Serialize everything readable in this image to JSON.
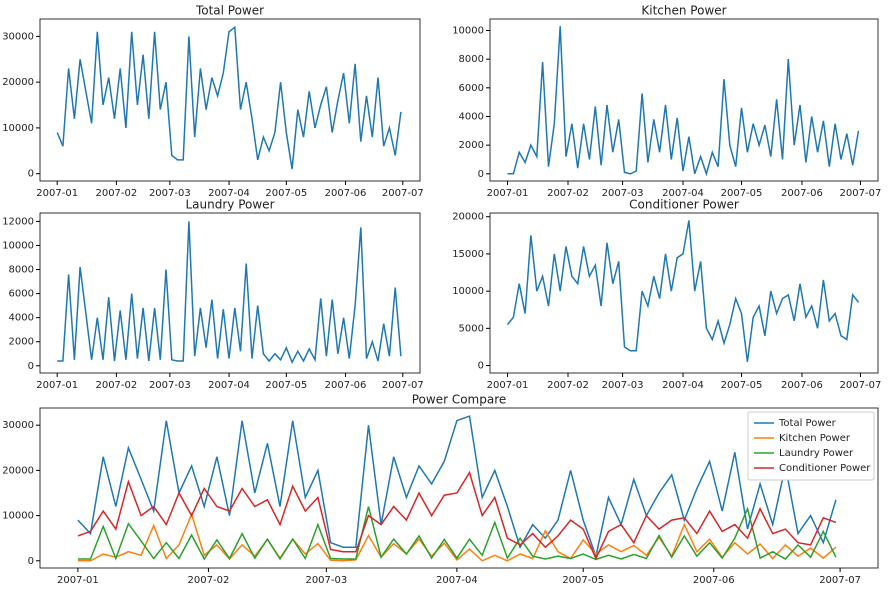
{
  "chart_data": [
    {
      "type": "line",
      "title": "Total Power",
      "color": "#1f77b4",
      "x": [
        0,
        3,
        6,
        9,
        12,
        15,
        18,
        21,
        24,
        27,
        30,
        33,
        36,
        39,
        42,
        45,
        48,
        51,
        54,
        57,
        60,
        63,
        66,
        69,
        72,
        75,
        78,
        81,
        84,
        87,
        90,
        93,
        96,
        99,
        102,
        105,
        108,
        111,
        114,
        117,
        120,
        123,
        126,
        129,
        132,
        135,
        138,
        141,
        144,
        147,
        150,
        153,
        156,
        159,
        162,
        165,
        168,
        171,
        174,
        177,
        180
      ],
      "values": [
        9000,
        6000,
        23000,
        12000,
        25000,
        18000,
        11000,
        31000,
        15000,
        21000,
        12000,
        23000,
        10000,
        31000,
        15000,
        26000,
        12000,
        31000,
        14000,
        20000,
        4000,
        3000,
        3000,
        30000,
        8000,
        23000,
        14000,
        21000,
        17000,
        22000,
        31000,
        32000,
        14000,
        20000,
        12000,
        3000,
        8000,
        5000,
        9000,
        20000,
        9000,
        1000,
        14000,
        8000,
        18000,
        10000,
        15000,
        19000,
        9000,
        16000,
        22000,
        11000,
        24000,
        7000,
        17000,
        8000,
        21000,
        6000,
        10000,
        4000,
        13500
      ],
      "xlim": [
        -9,
        190
      ],
      "xticks": [
        {
          "value": 0,
          "label": "2007-01"
        },
        {
          "value": 31,
          "label": "2007-02"
        },
        {
          "value": 59,
          "label": "2007-03"
        },
        {
          "value": 90,
          "label": "2007-04"
        },
        {
          "value": 120,
          "label": "2007-05"
        },
        {
          "value": 151,
          "label": "2007-06"
        },
        {
          "value": 181,
          "label": "2007-07"
        }
      ],
      "ylim": [
        -1600,
        33800
      ],
      "yticks": [
        0,
        10000,
        20000,
        30000
      ]
    },
    {
      "type": "line",
      "title": "Kitchen Power",
      "color": "#1f77b4",
      "x": [
        0,
        3,
        6,
        9,
        12,
        15,
        18,
        21,
        24,
        27,
        30,
        33,
        36,
        39,
        42,
        45,
        48,
        51,
        54,
        57,
        60,
        63,
        66,
        69,
        72,
        75,
        78,
        81,
        84,
        87,
        90,
        93,
        96,
        99,
        102,
        105,
        108,
        111,
        114,
        117,
        120,
        123,
        126,
        129,
        132,
        135,
        138,
        141,
        144,
        147,
        150,
        153,
        156,
        159,
        162,
        165,
        168,
        171,
        174,
        177,
        180
      ],
      "values": [
        0,
        0,
        1500,
        800,
        2000,
        1200,
        7800,
        500,
        3500,
        10300,
        1200,
        3500,
        400,
        3500,
        1000,
        4700,
        600,
        4800,
        1500,
        3800,
        100,
        0,
        200,
        5600,
        800,
        3800,
        1500,
        4800,
        1000,
        3900,
        200,
        2600,
        0,
        1200,
        0,
        1500,
        500,
        6600,
        2000,
        500,
        4600,
        1500,
        3500,
        2000,
        3400,
        1200,
        5200,
        1000,
        8000,
        2000,
        4800,
        800,
        4000,
        1500,
        3700,
        500,
        3500,
        1000,
        2800,
        600,
        3000
      ],
      "xlim": [
        -9,
        190
      ],
      "xticks": [
        {
          "value": 0,
          "label": "2007-01"
        },
        {
          "value": 31,
          "label": "2007-02"
        },
        {
          "value": 59,
          "label": "2007-03"
        },
        {
          "value": 90,
          "label": "2007-04"
        },
        {
          "value": 120,
          "label": "2007-05"
        },
        {
          "value": 151,
          "label": "2007-06"
        },
        {
          "value": 181,
          "label": "2007-07"
        }
      ],
      "ylim": [
        -500,
        10800
      ],
      "yticks": [
        0,
        2000,
        4000,
        6000,
        8000,
        10000
      ]
    },
    {
      "type": "line",
      "title": "Laundry Power",
      "color": "#1f77b4",
      "x": [
        0,
        3,
        6,
        9,
        12,
        15,
        18,
        21,
        24,
        27,
        30,
        33,
        36,
        39,
        42,
        45,
        48,
        51,
        54,
        57,
        60,
        63,
        66,
        69,
        72,
        75,
        78,
        81,
        84,
        87,
        90,
        93,
        96,
        99,
        102,
        105,
        108,
        111,
        114,
        117,
        120,
        123,
        126,
        129,
        132,
        135,
        138,
        141,
        144,
        147,
        150,
        153,
        156,
        159,
        162,
        165,
        168,
        171,
        174,
        177,
        180
      ],
      "values": [
        400,
        400,
        7600,
        500,
        8200,
        4400,
        500,
        4000,
        500,
        5700,
        400,
        4600,
        500,
        6000,
        600,
        4800,
        400,
        4800,
        500,
        8000,
        500,
        400,
        400,
        12000,
        800,
        4800,
        1500,
        5500,
        600,
        4700,
        600,
        4800,
        1200,
        8500,
        600,
        5000,
        1000,
        400,
        1000,
        500,
        1500,
        300,
        1200,
        400,
        1400,
        500,
        5600,
        800,
        5500,
        1000,
        4000,
        600,
        5000,
        11500,
        600,
        2000,
        400,
        3500,
        800,
        6500,
        800
      ],
      "xlim": [
        -9,
        190
      ],
      "xticks": [
        {
          "value": 0,
          "label": "2007-01"
        },
        {
          "value": 31,
          "label": "2007-02"
        },
        {
          "value": 59,
          "label": "2007-03"
        },
        {
          "value": 90,
          "label": "2007-04"
        },
        {
          "value": 120,
          "label": "2007-05"
        },
        {
          "value": 151,
          "label": "2007-06"
        },
        {
          "value": 181,
          "label": "2007-07"
        }
      ],
      "ylim": [
        -600,
        12700
      ],
      "yticks": [
        0,
        2000,
        4000,
        6000,
        8000,
        10000,
        12000
      ]
    },
    {
      "type": "line",
      "title": "Conditioner Power",
      "color": "#1f77b4",
      "x": [
        0,
        3,
        6,
        9,
        12,
        15,
        18,
        21,
        24,
        27,
        30,
        33,
        36,
        39,
        42,
        45,
        48,
        51,
        54,
        57,
        60,
        63,
        66,
        69,
        72,
        75,
        78,
        81,
        84,
        87,
        90,
        93,
        96,
        99,
        102,
        105,
        108,
        111,
        114,
        117,
        120,
        123,
        126,
        129,
        132,
        135,
        138,
        141,
        144,
        147,
        150,
        153,
        156,
        159,
        162,
        165,
        168,
        171,
        174,
        177,
        180
      ],
      "values": [
        5500,
        6500,
        11000,
        7000,
        17500,
        10000,
        12000,
        8000,
        15000,
        10000,
        16000,
        12000,
        11000,
        16000,
        12000,
        13500,
        8000,
        16500,
        11000,
        14000,
        2500,
        2000,
        2000,
        10000,
        8000,
        12000,
        9000,
        15000,
        10000,
        14500,
        15000,
        19500,
        10000,
        14000,
        5000,
        3500,
        6000,
        3000,
        5500,
        9000,
        7000,
        500,
        6500,
        8000,
        4000,
        10000,
        7000,
        9000,
        9500,
        6000,
        11000,
        6500,
        8000,
        5000,
        11500,
        6000,
        7000,
        4000,
        3500,
        9500,
        8500
      ],
      "xlim": [
        -9,
        190
      ],
      "xticks": [
        {
          "value": 0,
          "label": "2007-01"
        },
        {
          "value": 31,
          "label": "2007-02"
        },
        {
          "value": 59,
          "label": "2007-03"
        },
        {
          "value": 90,
          "label": "2007-04"
        },
        {
          "value": 120,
          "label": "2007-05"
        },
        {
          "value": 151,
          "label": "2007-06"
        },
        {
          "value": 181,
          "label": "2007-07"
        }
      ],
      "ylim": [
        -1000,
        20500
      ],
      "yticks": [
        0,
        5000,
        10000,
        15000,
        20000
      ]
    },
    {
      "type": "line",
      "title": "Power Compare",
      "legend": "upper right",
      "x": [
        0,
        3,
        6,
        9,
        12,
        15,
        18,
        21,
        24,
        27,
        30,
        33,
        36,
        39,
        42,
        45,
        48,
        51,
        54,
        57,
        60,
        63,
        66,
        69,
        72,
        75,
        78,
        81,
        84,
        87,
        90,
        93,
        96,
        99,
        102,
        105,
        108,
        111,
        114,
        117,
        120,
        123,
        126,
        129,
        132,
        135,
        138,
        141,
        144,
        147,
        150,
        153,
        156,
        159,
        162,
        165,
        168,
        171,
        174,
        177,
        180
      ],
      "series": [
        {
          "name": "Total Power",
          "color": "#1f77b4",
          "values": [
            9000,
            6000,
            23000,
            12000,
            25000,
            18000,
            11000,
            31000,
            15000,
            21000,
            12000,
            23000,
            10000,
            31000,
            15000,
            26000,
            12000,
            31000,
            14000,
            20000,
            4000,
            3000,
            3000,
            30000,
            8000,
            23000,
            14000,
            21000,
            17000,
            22000,
            31000,
            32000,
            14000,
            20000,
            12000,
            3000,
            8000,
            5000,
            9000,
            20000,
            9000,
            1000,
            14000,
            8000,
            18000,
            10000,
            15000,
            19000,
            9000,
            16000,
            22000,
            11000,
            24000,
            7000,
            17000,
            8000,
            21000,
            6000,
            10000,
            4000,
            13500
          ]
        },
        {
          "name": "Kitchen Power",
          "color": "#ff7f0e",
          "values": [
            0,
            0,
            1500,
            800,
            2000,
            1200,
            7800,
            500,
            3500,
            10300,
            1200,
            3500,
            400,
            3500,
            1000,
            4700,
            600,
            4800,
            1500,
            3800,
            100,
            0,
            200,
            5600,
            800,
            3800,
            1500,
            4800,
            1000,
            3900,
            200,
            2600,
            0,
            1200,
            0,
            1500,
            500,
            6600,
            2000,
            500,
            4600,
            1500,
            3500,
            2000,
            3400,
            1200,
            5200,
            1000,
            8000,
            2000,
            4800,
            800,
            4000,
            1500,
            3700,
            500,
            3500,
            1000,
            2800,
            600,
            3000
          ]
        },
        {
          "name": "Laundry Power",
          "color": "#2ca02c",
          "values": [
            400,
            400,
            7600,
            500,
            8200,
            4400,
            500,
            4000,
            500,
            5700,
            400,
            4600,
            500,
            6000,
            600,
            4800,
            400,
            4800,
            500,
            8000,
            500,
            400,
            400,
            12000,
            800,
            4800,
            1500,
            5500,
            600,
            4700,
            600,
            4800,
            1200,
            8500,
            600,
            5000,
            1000,
            400,
            1000,
            500,
            1500,
            300,
            1200,
            400,
            1400,
            500,
            5600,
            800,
            5500,
            1000,
            4000,
            600,
            5000,
            11500,
            600,
            2000,
            400,
            3500,
            800,
            6500,
            800
          ]
        },
        {
          "name": "Conditioner Power",
          "color": "#d62728",
          "values": [
            5500,
            6500,
            11000,
            7000,
            17500,
            10000,
            12000,
            8000,
            15000,
            10000,
            16000,
            12000,
            11000,
            16000,
            12000,
            13500,
            8000,
            16500,
            11000,
            14000,
            2500,
            2000,
            2000,
            10000,
            8000,
            12000,
            9000,
            15000,
            10000,
            14500,
            15000,
            19500,
            10000,
            14000,
            5000,
            3500,
            6000,
            3000,
            5500,
            9000,
            7000,
            500,
            6500,
            8000,
            4000,
            10000,
            7000,
            9000,
            9500,
            6000,
            11000,
            6500,
            8000,
            5000,
            11500,
            6000,
            7000,
            4000,
            3500,
            9500,
            8500
          ]
        }
      ],
      "xlim": [
        -9,
        190
      ],
      "xticks": [
        {
          "value": 0,
          "label": "2007-01"
        },
        {
          "value": 31,
          "label": "2007-02"
        },
        {
          "value": 59,
          "label": "2007-03"
        },
        {
          "value": 90,
          "label": "2007-04"
        },
        {
          "value": 120,
          "label": "2007-05"
        },
        {
          "value": 151,
          "label": "2007-06"
        },
        {
          "value": 181,
          "label": "2007-07"
        }
      ],
      "ylim": [
        -1600,
        33800
      ],
      "yticks": [
        0,
        10000,
        20000,
        30000
      ]
    }
  ]
}
